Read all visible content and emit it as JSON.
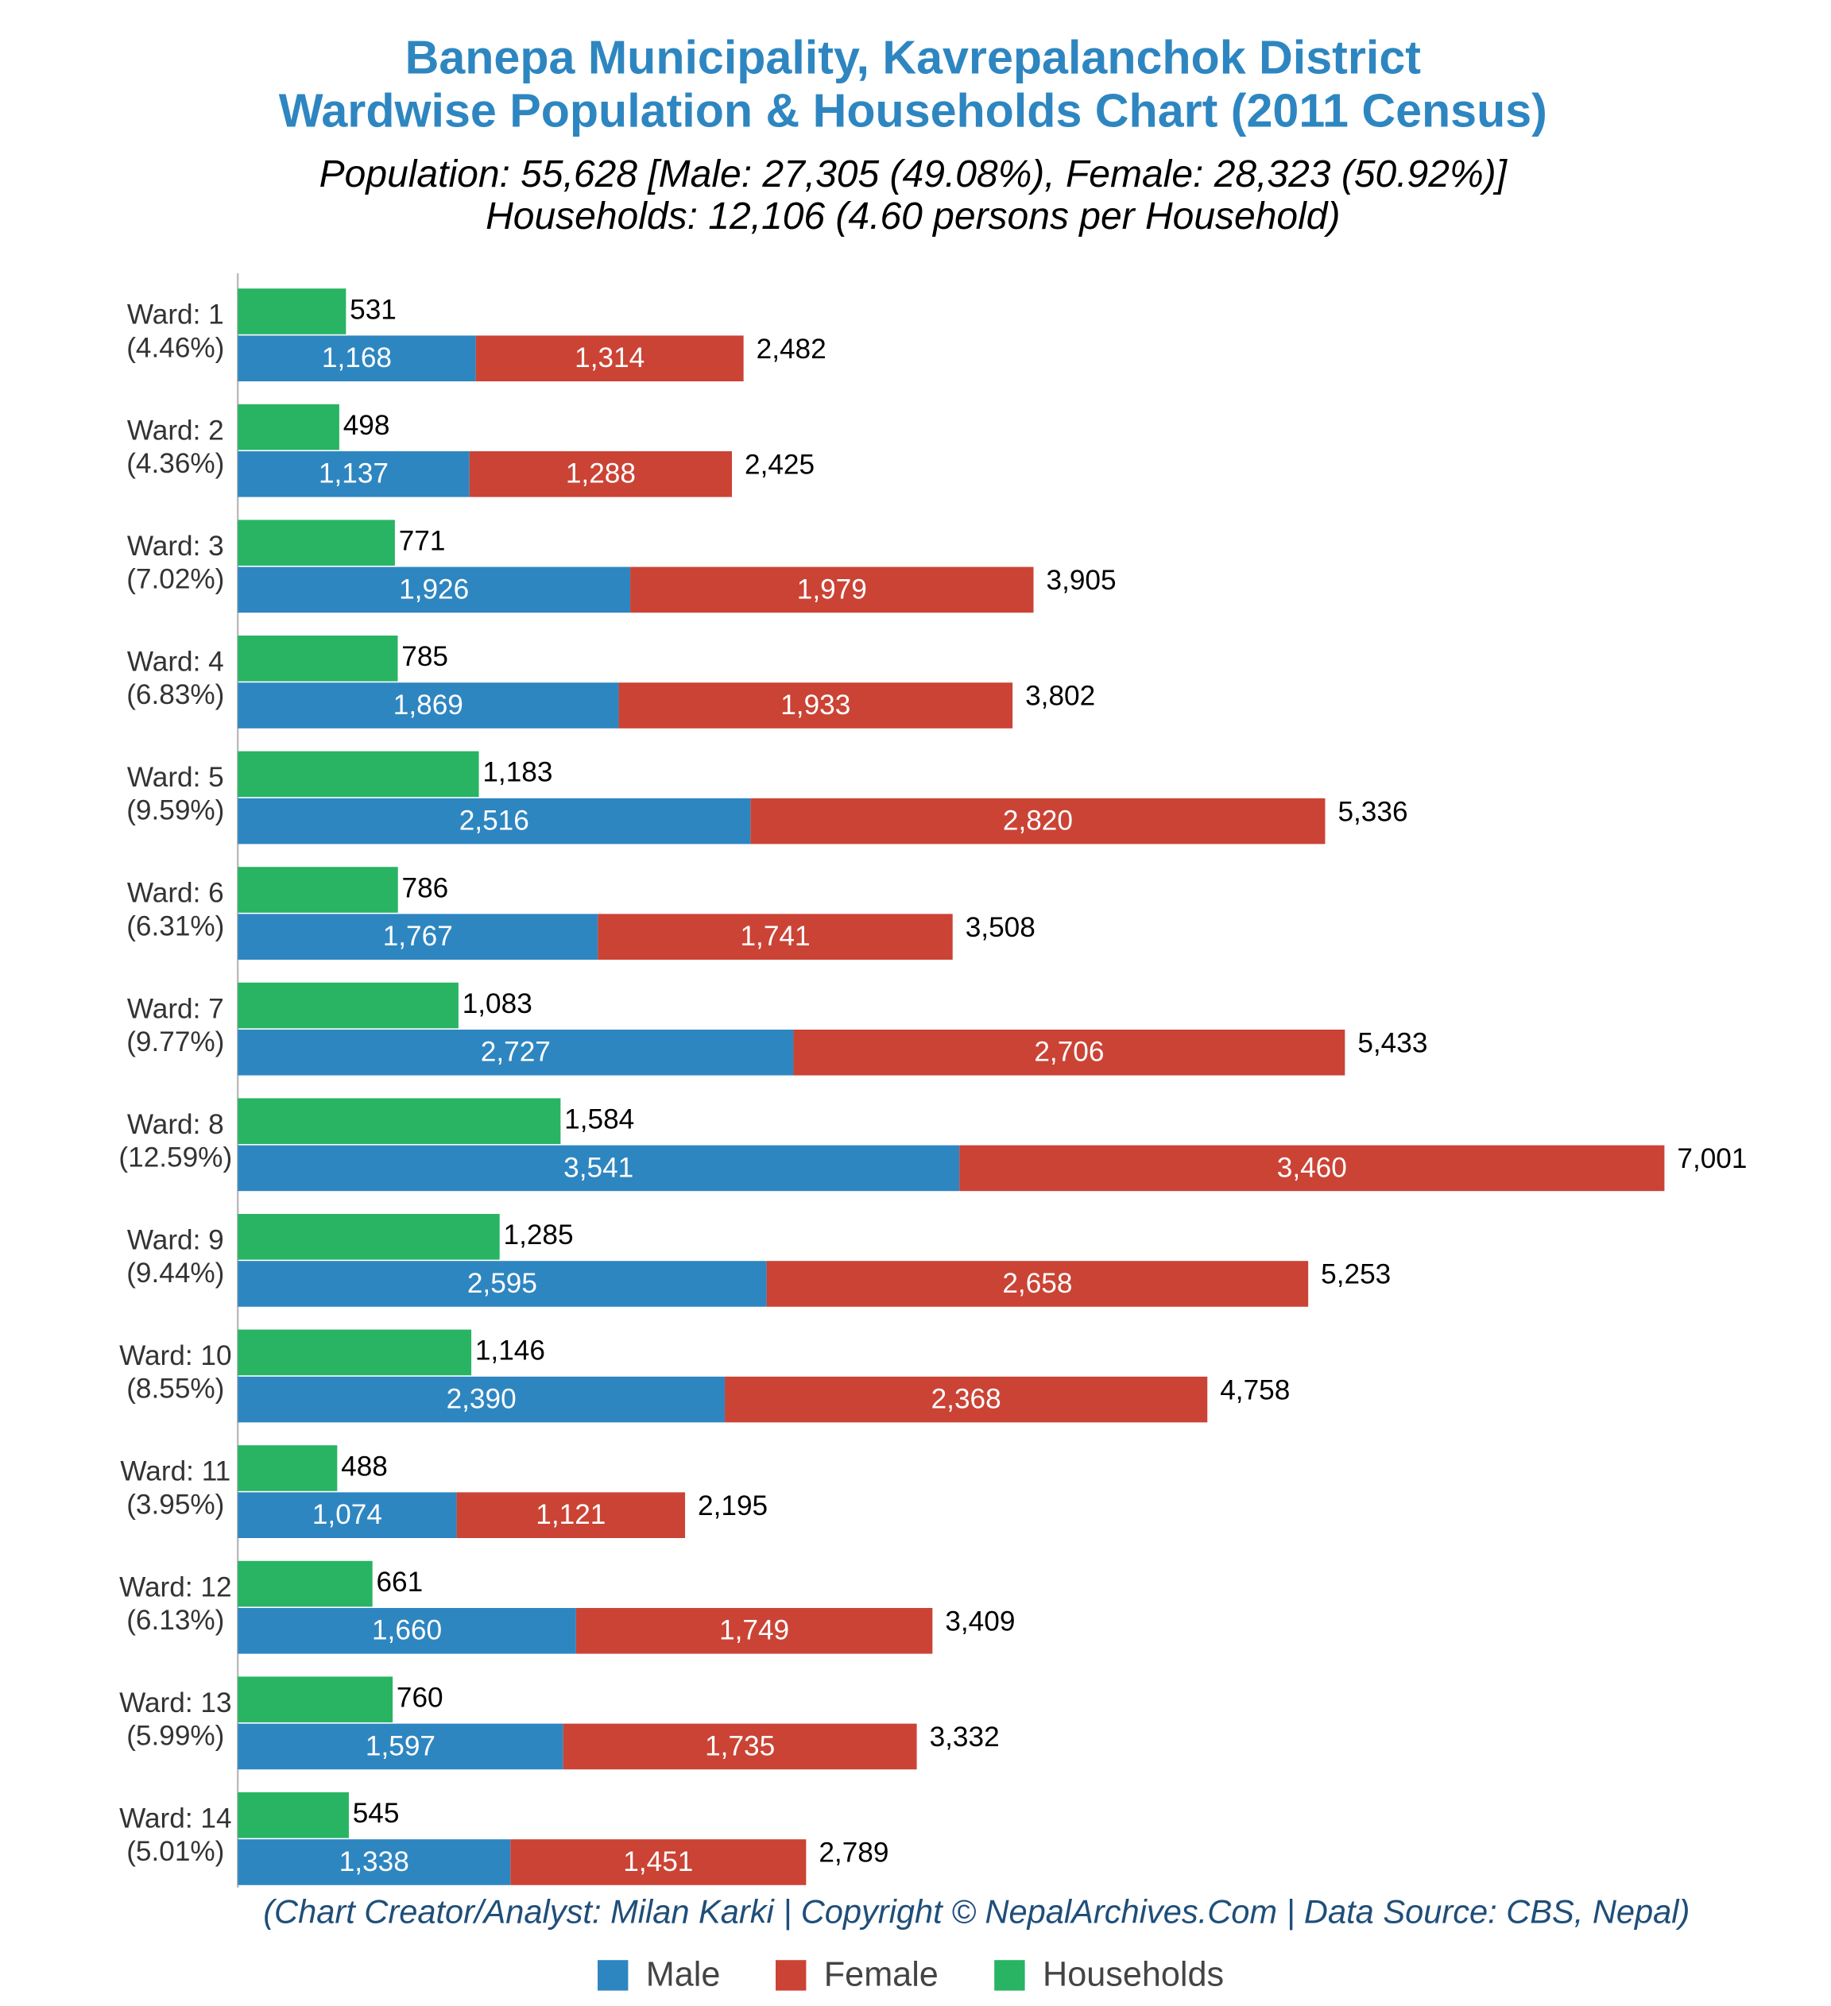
{
  "chart_data": {
    "type": "bar",
    "orientation": "horizontal",
    "title": [
      "Banepa Municipality, Kavrepalanchok District",
      "Wardwise Population & Households Chart (2011 Census)"
    ],
    "subtitle": [
      "Population: 55,628 [Male: 27,305 (49.08%), Female: 28,323 (50.92%)]",
      "Households: 12,106 (4.60 persons per Household)"
    ],
    "source": "(Chart Creator/Analyst: Milan Karki | Copyright © NepalArchives.Com | Data Source: CBS, Nepal)",
    "categories": [
      "Ward: 1",
      "Ward: 2",
      "Ward: 3",
      "Ward: 4",
      "Ward: 5",
      "Ward: 6",
      "Ward: 7",
      "Ward: 8",
      "Ward: 9",
      "Ward: 10",
      "Ward: 11",
      "Ward: 12",
      "Ward: 13",
      "Ward: 14"
    ],
    "category_shares": [
      "(4.46%)",
      "(4.36%)",
      "(7.02%)",
      "(6.83%)",
      "(9.59%)",
      "(6.31%)",
      "(9.77%)",
      "(12.59%)",
      "(9.44%)",
      "(8.55%)",
      "(3.95%)",
      "(6.13%)",
      "(5.99%)",
      "(5.01%)"
    ],
    "series": [
      {
        "name": "Male",
        "color": "#2e86c1",
        "stack": "population",
        "values": [
          1168,
          1137,
          1926,
          1869,
          2516,
          1767,
          2727,
          3541,
          2595,
          2390,
          1074,
          1660,
          1597,
          1338
        ],
        "value_labels": [
          "1,168",
          "1,137",
          "1,926",
          "1,869",
          "2,516",
          "1,767",
          "2,727",
          "3,541",
          "2,595",
          "2,390",
          "1,074",
          "1,660",
          "1,597",
          "1,338"
        ]
      },
      {
        "name": "Female",
        "color": "#cb4335",
        "stack": "population",
        "values": [
          1314,
          1288,
          1979,
          1933,
          2820,
          1741,
          2706,
          3460,
          2658,
          2368,
          1121,
          1749,
          1735,
          1451
        ],
        "value_labels": [
          "1,314",
          "1,288",
          "1,979",
          "1,933",
          "2,820",
          "1,741",
          "2,706",
          "3,460",
          "2,658",
          "2,368",
          "1,121",
          "1,749",
          "1,735",
          "1,451"
        ]
      },
      {
        "name": "Households",
        "color": "#28b463",
        "stack": "households",
        "values": [
          531,
          498,
          771,
          785,
          1183,
          786,
          1083,
          1584,
          1285,
          1146,
          488,
          661,
          760,
          545
        ],
        "value_labels": [
          "531",
          "498",
          "771",
          "785",
          "1,183",
          "786",
          "1,083",
          "1,584",
          "1,285",
          "1,146",
          "488",
          "661",
          "760",
          "545"
        ]
      }
    ],
    "totals": {
      "values": [
        2482,
        2425,
        3905,
        3802,
        5336,
        3508,
        5433,
        7001,
        5253,
        4758,
        2195,
        3409,
        3332,
        2789
      ],
      "value_labels": [
        "2,482",
        "2,425",
        "3,905",
        "3,802",
        "5,336",
        "3,508",
        "5,433",
        "7,001",
        "5,253",
        "4,758",
        "2,195",
        "3,409",
        "3,332",
        "2,789"
      ]
    },
    "xlim": [
      0,
      7500
    ],
    "legend": "bottom"
  }
}
